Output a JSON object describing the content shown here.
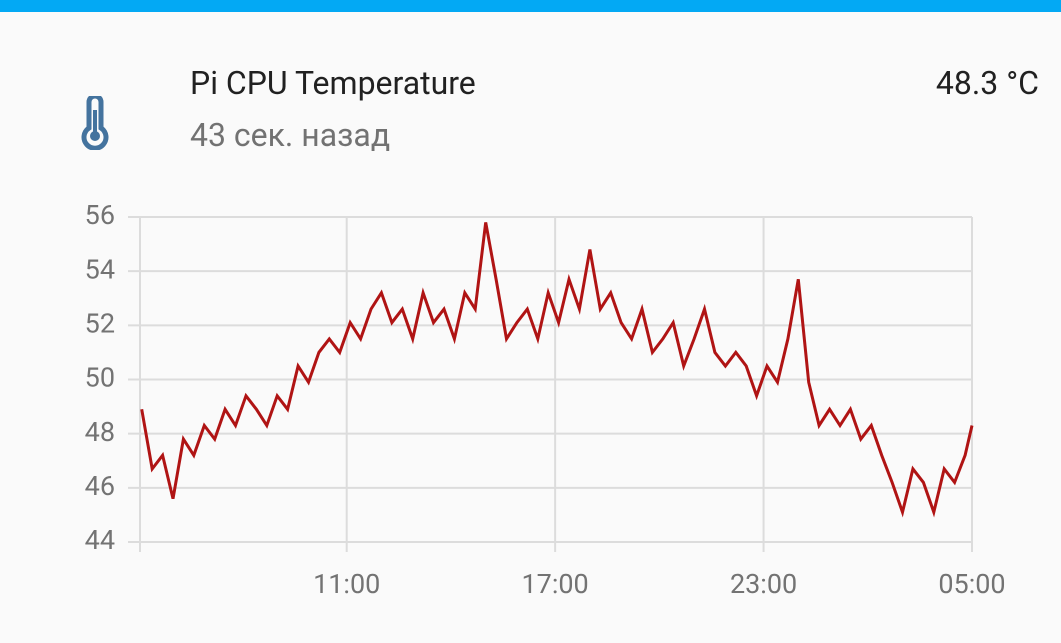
{
  "header": {
    "title": "Pi CPU Temperature",
    "subtitle": "43 сек. назад",
    "state": "48.3 °C"
  },
  "chart_data": {
    "type": "line",
    "color": "#b01414",
    "grid": true,
    "x": [
      5.1,
      5.4,
      5.7,
      6.0,
      6.3,
      6.6,
      6.9,
      7.2,
      7.5,
      7.8,
      8.1,
      8.4,
      8.7,
      9.0,
      9.3,
      9.6,
      9.9,
      10.2,
      10.5,
      10.8,
      11.1,
      11.4,
      11.7,
      12.0,
      12.3,
      12.6,
      12.9,
      13.2,
      13.5,
      13.8,
      14.1,
      14.4,
      14.7,
      15.0,
      15.3,
      15.6,
      15.9,
      16.2,
      16.5,
      16.8,
      17.1,
      17.4,
      17.7,
      18.0,
      18.3,
      18.6,
      18.9,
      19.2,
      19.5,
      19.8,
      20.1,
      20.4,
      20.7,
      21.0,
      21.3,
      21.6,
      21.9,
      22.2,
      22.5,
      22.8,
      23.1,
      23.4,
      23.7,
      24.0,
      24.3,
      24.6,
      24.9,
      25.2,
      25.5,
      25.8,
      26.1,
      26.4,
      26.7,
      27.0,
      27.3,
      27.6,
      27.9,
      28.2,
      28.5,
      28.8,
      29.0
    ],
    "values": [
      48.9,
      46.7,
      47.2,
      45.6,
      47.8,
      47.2,
      48.3,
      47.8,
      48.9,
      48.3,
      49.4,
      48.9,
      48.3,
      49.4,
      48.9,
      50.5,
      49.9,
      51.0,
      51.5,
      51.0,
      52.1,
      51.5,
      52.6,
      53.2,
      52.1,
      52.6,
      51.5,
      53.2,
      52.1,
      52.6,
      51.5,
      53.2,
      52.6,
      55.8,
      53.7,
      51.5,
      52.1,
      52.6,
      51.5,
      53.2,
      52.1,
      53.7,
      52.6,
      54.8,
      52.6,
      53.2,
      52.1,
      51.5,
      52.6,
      51.0,
      51.5,
      52.1,
      50.5,
      51.5,
      52.6,
      51.0,
      50.5,
      51.0,
      50.5,
      49.4,
      50.5,
      49.9,
      51.5,
      53.7,
      49.9,
      48.3,
      48.9,
      48.3,
      48.9,
      47.8,
      48.3,
      47.2,
      46.2,
      45.1,
      46.7,
      46.2,
      45.1,
      46.7,
      46.2,
      47.2,
      48.3
    ],
    "xlim": [
      5.05,
      29
    ],
    "ylim": [
      44,
      56
    ],
    "xticks": [
      {
        "value": 11,
        "label": "11:00"
      },
      {
        "value": 17,
        "label": "17:00"
      },
      {
        "value": 23,
        "label": "23:00"
      },
      {
        "value": 29,
        "label": "05:00"
      }
    ],
    "yticks": [
      44,
      46,
      48,
      50,
      52,
      54,
      56
    ]
  }
}
